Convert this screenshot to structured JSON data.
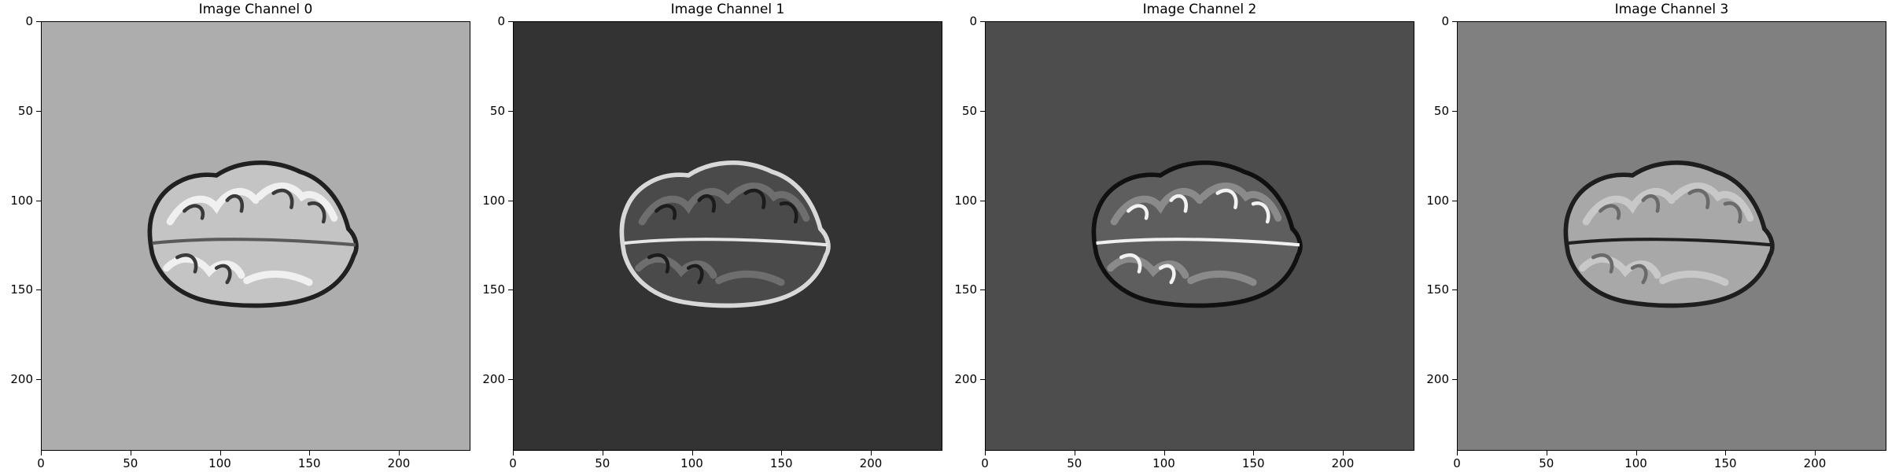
{
  "figure": {
    "panels": [
      {
        "title": "Image Channel 0",
        "background": "#adadad",
        "brain_tone": "#c4c4c4",
        "gyri_tone": "#f0f0f0",
        "sulci_tone": "#3a3a3a",
        "rim_tone": "#202020",
        "midline_tone": "#5a5a5a"
      },
      {
        "title": "Image Channel 1",
        "background": "#333333",
        "brain_tone": "#4a4a4a",
        "gyri_tone": "#6e6e6e",
        "sulci_tone": "#1c1c1c",
        "rim_tone": "#d8d8d8",
        "midline_tone": "#e6e6e6"
      },
      {
        "title": "Image Channel 2",
        "background": "#4d4d4d",
        "brain_tone": "#5e5e5e",
        "gyri_tone": "#8a8a8a",
        "sulci_tone": "#f2f2f2",
        "rim_tone": "#101010",
        "midline_tone": "#f0f0f0"
      },
      {
        "title": "Image Channel 3",
        "background": "#808080",
        "brain_tone": "#a8a8a8",
        "gyri_tone": "#c8c8c8",
        "sulci_tone": "#6a6a6a",
        "rim_tone": "#1e1e1e",
        "midline_tone": "#202020"
      }
    ],
    "axis": {
      "x_ticks": [
        "0",
        "50",
        "100",
        "150",
        "200"
      ],
      "y_ticks": [
        "0",
        "50",
        "100",
        "150",
        "200"
      ],
      "xlim": [
        0,
        240
      ],
      "ylim": [
        240,
        0
      ]
    }
  }
}
